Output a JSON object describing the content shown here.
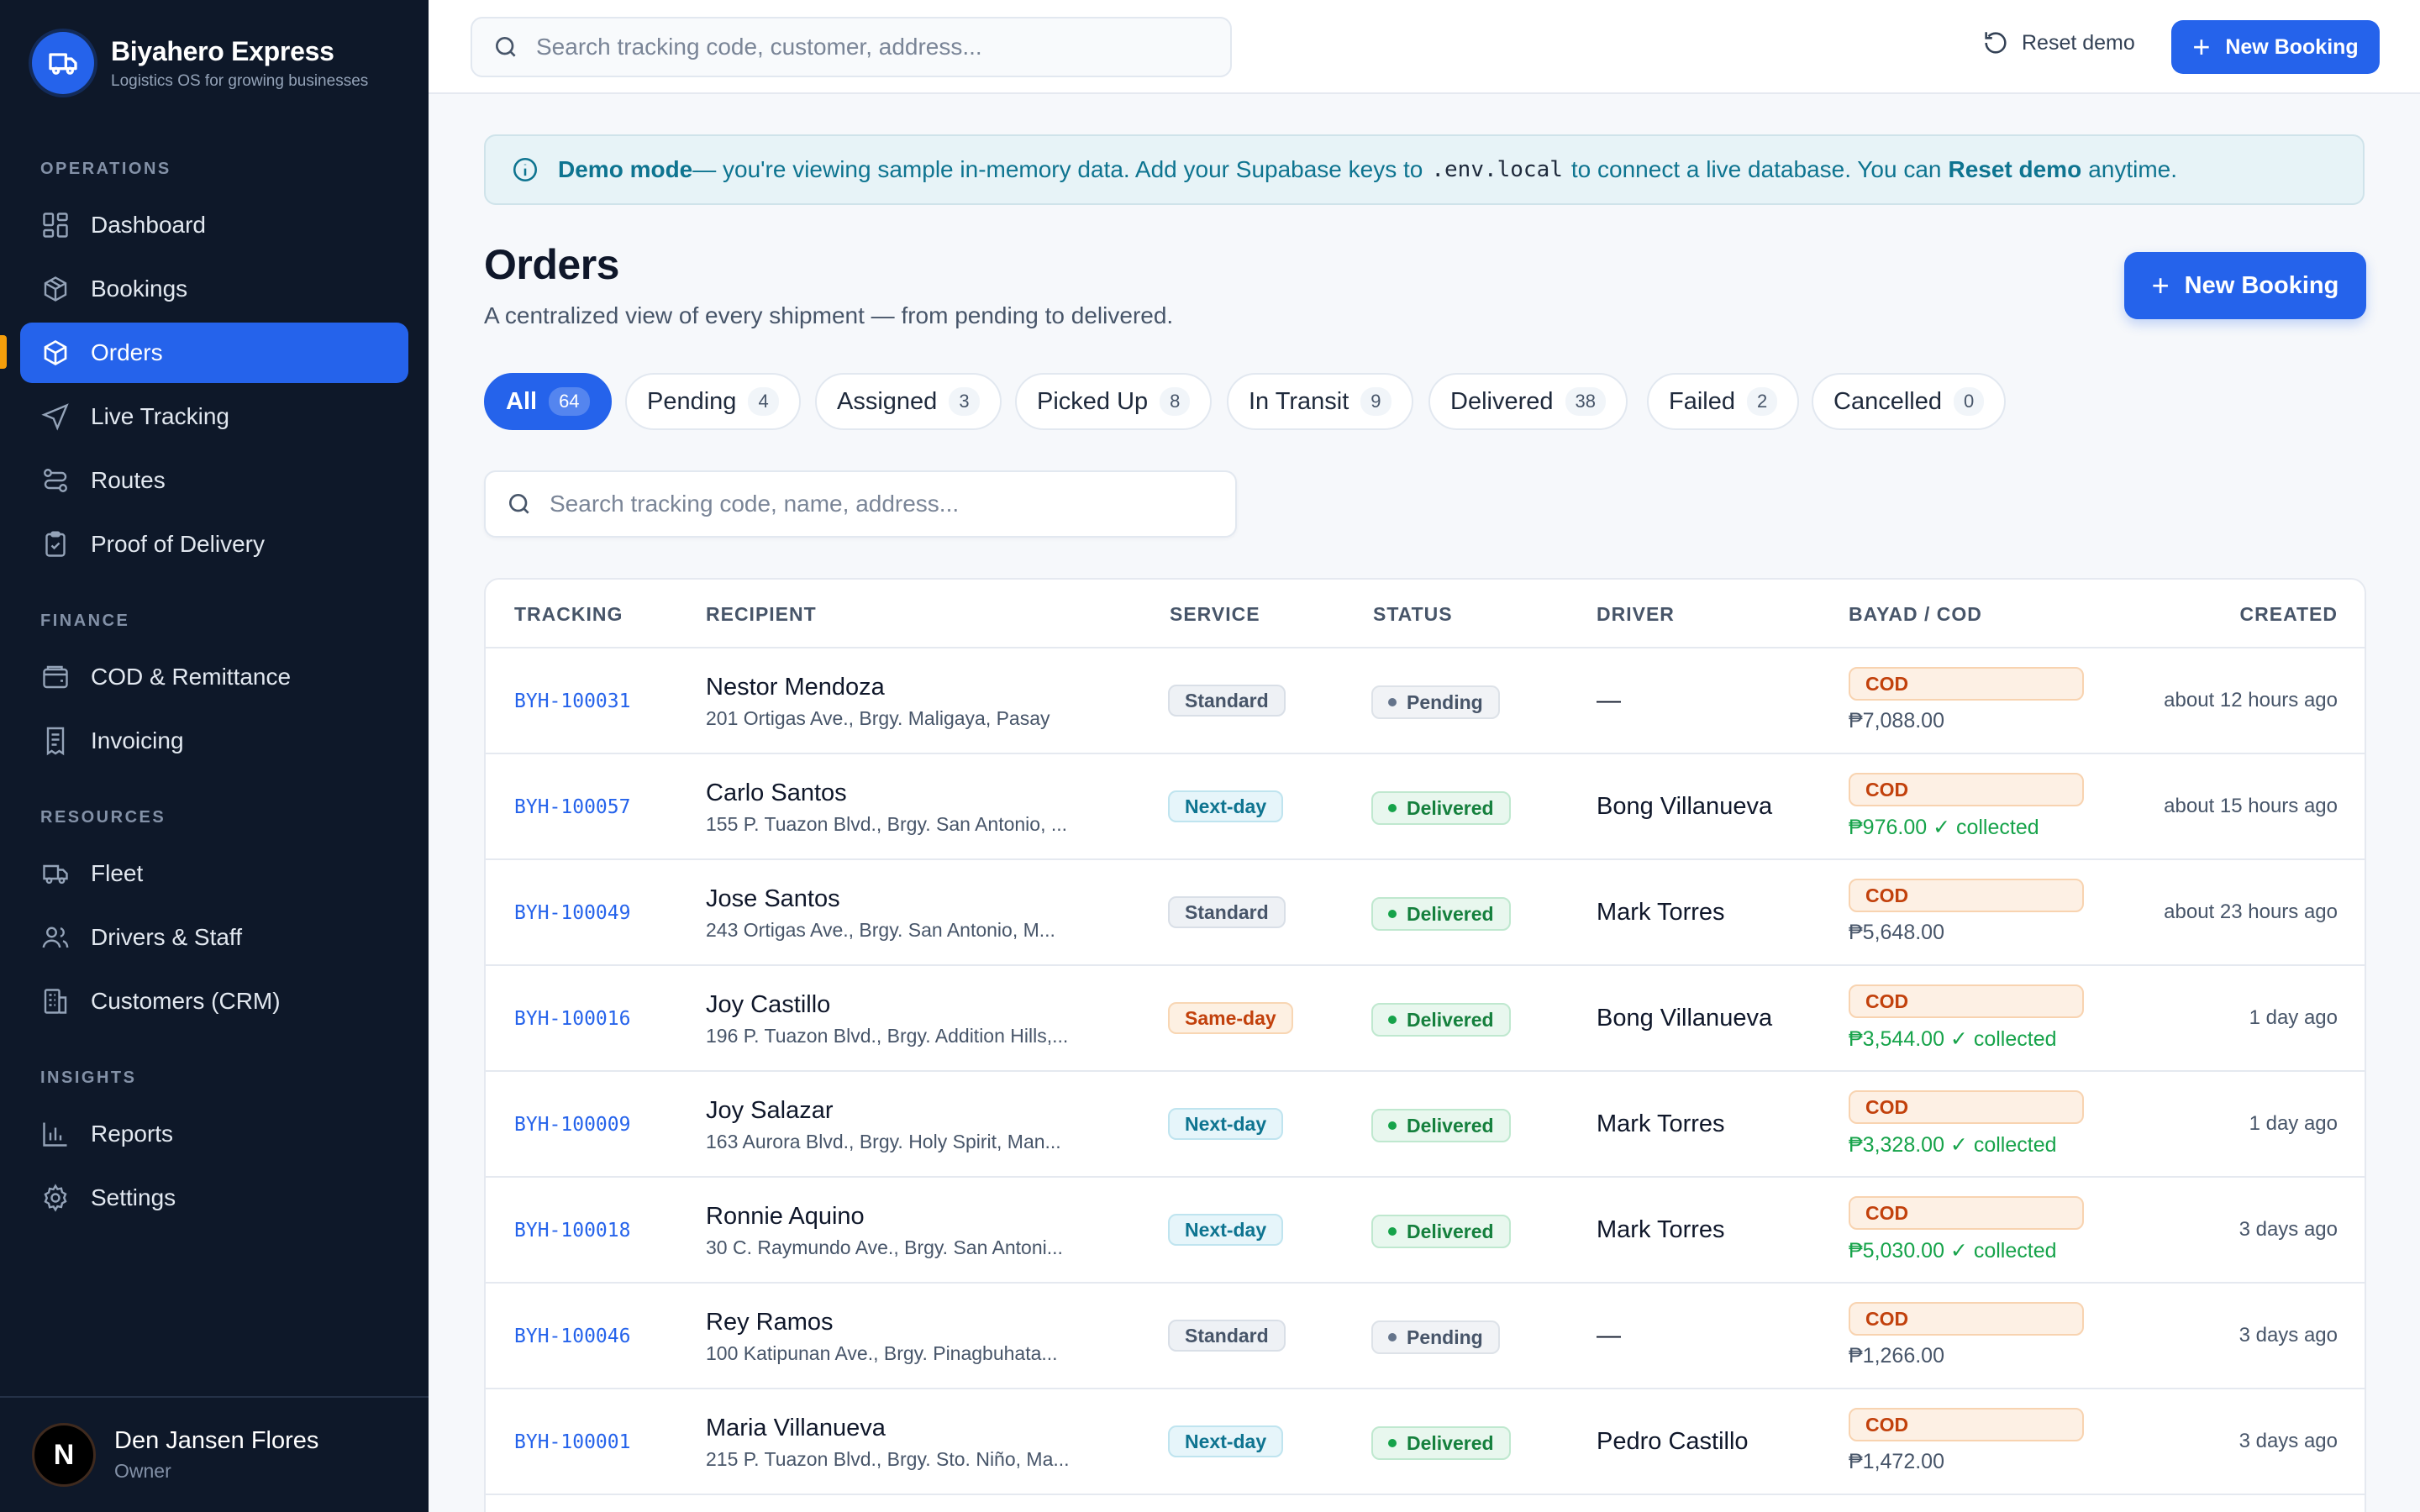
{
  "brand": {
    "name": "Biyahero Express",
    "tagline": "Logistics OS for growing businesses"
  },
  "sidebar": {
    "sections": [
      {
        "title": "OPERATIONS",
        "items": [
          "Dashboard",
          "Bookings",
          "Orders",
          "Live Tracking",
          "Routes",
          "Proof of Delivery"
        ]
      },
      {
        "title": "FINANCE",
        "items": [
          "COD & Remittance",
          "Invoicing"
        ]
      },
      {
        "title": "RESOURCES",
        "items": [
          "Fleet",
          "Drivers & Staff",
          "Customers (CRM)"
        ]
      },
      {
        "title": "INSIGHTS",
        "items": [
          "Reports",
          "Settings"
        ]
      }
    ],
    "active_item": "Orders",
    "accent_color": "#2563eb",
    "marker_color": "#f59e0b"
  },
  "user": {
    "initial": "N",
    "name": "Den Jansen Flores",
    "role": "Owner"
  },
  "topbar": {
    "search_placeholder": "Search tracking code, customer, address...",
    "reset_label": "Reset demo",
    "new_booking_label": "New Booking"
  },
  "banner": {
    "strong": "Demo mode",
    "text1": "— you're viewing sample in-memory data. Add your Supabase keys to",
    "code": ".env.local",
    "text2": "to connect a live database. You can",
    "link": "Reset demo",
    "text3": "anytime."
  },
  "page": {
    "title": "Orders",
    "subtitle": "A centralized view of every shipment — from pending to delivered.",
    "new_booking_label": "New Booking",
    "filter_placeholder": "Search tracking code, name, address..."
  },
  "tabs": [
    {
      "label": "All",
      "count": "64"
    },
    {
      "label": "Pending",
      "count": "4"
    },
    {
      "label": "Assigned",
      "count": "3"
    },
    {
      "label": "Picked Up",
      "count": "8"
    },
    {
      "label": "In Transit",
      "count": "9"
    },
    {
      "label": "Delivered",
      "count": "38"
    },
    {
      "label": "Failed",
      "count": "2"
    },
    {
      "label": "Cancelled",
      "count": "0"
    }
  ],
  "table": {
    "columns": [
      "TRACKING",
      "RECIPIENT",
      "SERVICE",
      "STATUS",
      "DRIVER",
      "BAYAD / COD",
      "CREATED"
    ],
    "rows": [
      {
        "tracking": "BYH-100031",
        "name": "Nestor Mendoza",
        "address": "201 Ortigas Ave., Brgy. Maligaya, Pasay",
        "service": "Standard",
        "status": "Pending",
        "driver": "—",
        "cod": "COD",
        "amount": "₱7,088.00",
        "created": "about 12 hours ago"
      },
      {
        "tracking": "BYH-100057",
        "name": "Carlo Santos",
        "address": "155 P. Tuazon Blvd., Brgy. San Antonio, ...",
        "service": "Next-day",
        "status": "Delivered",
        "driver": "Bong Villanueva",
        "cod": "COD",
        "amount": "₱976.00 ✓ collected",
        "created": "about 15 hours ago"
      },
      {
        "tracking": "BYH-100049",
        "name": "Jose Santos",
        "address": "243 Ortigas Ave., Brgy. San Antonio, M...",
        "service": "Standard",
        "status": "Delivered",
        "driver": "Mark Torres",
        "cod": "COD",
        "amount": "₱5,648.00",
        "created": "about 23 hours ago"
      },
      {
        "tracking": "BYH-100016",
        "name": "Joy Castillo",
        "address": "196 P. Tuazon Blvd., Brgy. Addition Hills,...",
        "service": "Same-day",
        "status": "Delivered",
        "driver": "Bong Villanueva",
        "cod": "COD",
        "amount": "₱3,544.00 ✓ collected",
        "created": "1 day ago"
      },
      {
        "tracking": "BYH-100009",
        "name": "Joy Salazar",
        "address": "163 Aurora Blvd., Brgy. Holy Spirit, Man...",
        "service": "Next-day",
        "status": "Delivered",
        "driver": "Mark Torres",
        "cod": "COD",
        "amount": "₱3,328.00 ✓ collected",
        "created": "1 day ago"
      },
      {
        "tracking": "BYH-100018",
        "name": "Ronnie Aquino",
        "address": "30 C. Raymundo Ave., Brgy. San Antoni...",
        "service": "Next-day",
        "status": "Delivered",
        "driver": "Mark Torres",
        "cod": "COD",
        "amount": "₱5,030.00 ✓ collected",
        "created": "3 days ago"
      },
      {
        "tracking": "BYH-100046",
        "name": "Rey Ramos",
        "address": "100 Katipunan Ave., Brgy. Pinagbuhata...",
        "service": "Standard",
        "status": "Pending",
        "driver": "—",
        "cod": "COD",
        "amount": "₱1,266.00",
        "created": "3 days ago"
      },
      {
        "tracking": "BYH-100001",
        "name": "Maria Villanueva",
        "address": "215 P. Tuazon Blvd., Brgy. Sto. Niño, Ma...",
        "service": "Next-day",
        "status": "Delivered",
        "driver": "Pedro Castillo",
        "cod": "COD",
        "amount": "₱1,472.00",
        "created": "3 days ago"
      }
    ]
  }
}
